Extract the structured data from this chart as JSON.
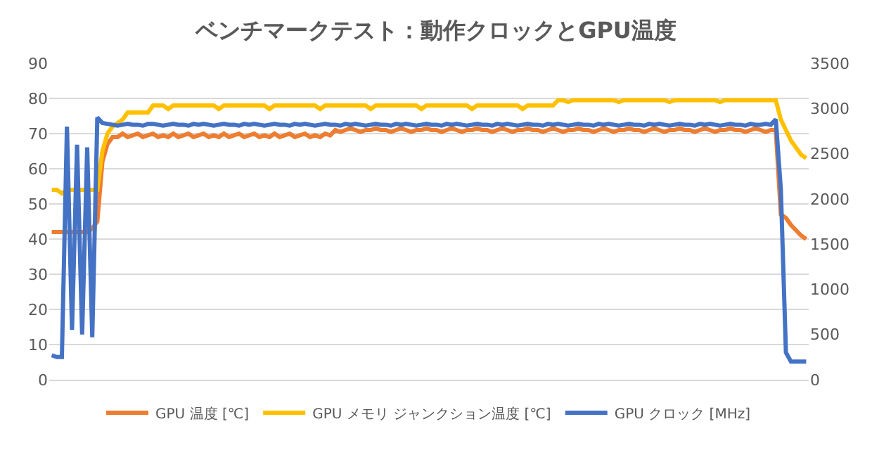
{
  "chart_data": {
    "type": "line",
    "title": "ベンチマークテスト：動作クロックとGPU温度",
    "categories": [
      null,
      null,
      null,
      null,
      null,
      null,
      null,
      null,
      null,
      null,
      null,
      null,
      null,
      null,
      null,
      null,
      null,
      null,
      null,
      null,
      null,
      null,
      null,
      null,
      null,
      null,
      null,
      null,
      null,
      null,
      null,
      null,
      null,
      null,
      null,
      null,
      null,
      null,
      null,
      null,
      null,
      null,
      null,
      null,
      null,
      null,
      null,
      null,
      null,
      null,
      null,
      null,
      null,
      null,
      null,
      null,
      null,
      null,
      null,
      null,
      null,
      null,
      null,
      null,
      null,
      null,
      null,
      null,
      null,
      null,
      null,
      null,
      null,
      null,
      null,
      null,
      null,
      null,
      null,
      null,
      null,
      null,
      null,
      null,
      null,
      null,
      null,
      null,
      null,
      null,
      null,
      null,
      null,
      null,
      null,
      null,
      null,
      null,
      null,
      null,
      null,
      null,
      null,
      null,
      null,
      null,
      null,
      null,
      null,
      null,
      null,
      null,
      null,
      null,
      null,
      null,
      null,
      null,
      null,
      null,
      null,
      null,
      null,
      null,
      null,
      null,
      null,
      null,
      null,
      null,
      null,
      null,
      null,
      null,
      null,
      null,
      null,
      null,
      null,
      null,
      null,
      null,
      null,
      null,
      null,
      null,
      null,
      null,
      null,
      null
    ],
    "series": [
      {
        "name": "GPU 温度 [℃]",
        "color": "#ed7d31",
        "values": [
          42,
          42,
          42,
          42,
          42,
          42,
          42,
          42,
          43,
          45,
          62,
          67,
          69,
          69,
          70,
          69,
          69.5,
          70,
          69,
          69.5,
          70,
          69,
          69.5,
          69,
          70,
          69,
          69.5,
          70,
          69,
          69.5,
          70,
          69,
          69.5,
          69,
          70,
          69,
          69.5,
          70,
          69,
          69.5,
          70,
          69,
          69.5,
          69,
          70,
          69,
          69.5,
          70,
          69,
          69.5,
          70,
          69,
          69.5,
          69,
          70,
          69.5,
          71,
          70.5,
          71,
          71.5,
          71,
          70.5,
          71,
          71,
          71.5,
          71,
          71,
          70.5,
          71,
          71.5,
          71,
          70.5,
          71,
          71,
          71.5,
          71,
          71,
          70.5,
          71,
          71.5,
          71,
          70.5,
          71,
          71,
          71.5,
          71,
          71,
          70.5,
          71,
          71.5,
          71,
          70.5,
          71,
          71,
          71.5,
          71,
          71,
          70.5,
          71,
          71.5,
          71,
          70.5,
          71,
          71,
          71.5,
          71,
          71,
          70.5,
          71,
          71.5,
          71,
          70.5,
          71,
          71,
          71.5,
          71,
          71,
          70.5,
          71,
          71.5,
          71,
          70.5,
          71,
          71,
          71.5,
          71,
          71,
          70.5,
          71,
          71.5,
          71,
          70.5,
          71,
          71,
          71.5,
          71,
          71,
          70.5,
          71,
          71.5,
          71,
          70.5,
          71,
          71,
          47,
          46,
          44,
          42.5,
          41,
          40
        ]
      },
      {
        "name": "GPU メモリ ジャンクション温度 [℃]",
        "color": "#ffc000",
        "values": [
          54,
          54,
          53,
          54,
          54,
          54,
          54,
          54,
          54,
          54,
          65,
          70,
          72,
          73,
          74,
          76,
          76,
          76,
          76,
          76,
          78,
          78,
          78,
          77,
          78,
          78,
          78,
          78,
          78,
          78,
          78,
          78,
          78,
          77,
          78,
          78,
          78,
          78,
          78,
          78,
          78,
          78,
          78,
          77,
          78,
          78,
          78,
          78,
          78,
          78,
          78,
          78,
          78,
          77,
          78,
          78,
          78,
          78,
          78,
          78,
          78,
          78,
          78,
          77,
          78,
          78,
          78,
          78,
          78,
          78,
          78,
          78,
          78,
          77,
          78,
          78,
          78,
          78,
          78,
          78,
          78,
          78,
          78,
          77,
          78,
          78,
          78,
          78,
          78,
          78,
          78,
          78,
          78,
          77,
          78,
          78,
          78,
          78,
          78,
          78,
          79.5,
          79.5,
          79,
          79.5,
          79.5,
          79.5,
          79.5,
          79.5,
          79.5,
          79.5,
          79.5,
          79.5,
          79,
          79.5,
          79.5,
          79.5,
          79.5,
          79.5,
          79.5,
          79.5,
          79.5,
          79.5,
          79,
          79.5,
          79.5,
          79.5,
          79.5,
          79.5,
          79.5,
          79.5,
          79.5,
          79.5,
          79,
          79.5,
          79.5,
          79.5,
          79.5,
          79.5,
          79.5,
          79.5,
          79.5,
          79.5,
          79.5,
          79.5,
          74,
          71,
          68,
          66,
          64,
          63
        ]
      },
      {
        "name": "GPU クロック [MHz]",
        "color": "#4472c4",
        "axis": "y2",
        "values": [
          270,
          250,
          250,
          2800,
          550,
          2600,
          500,
          2570,
          470,
          2900,
          2840,
          2830,
          2820,
          2810,
          2820,
          2830,
          2820,
          2820,
          2810,
          2830,
          2830,
          2820,
          2810,
          2820,
          2830,
          2820,
          2820,
          2810,
          2830,
          2820,
          2830,
          2820,
          2810,
          2820,
          2830,
          2820,
          2820,
          2810,
          2830,
          2820,
          2830,
          2820,
          2810,
          2820,
          2830,
          2820,
          2820,
          2810,
          2830,
          2820,
          2830,
          2820,
          2810,
          2820,
          2830,
          2820,
          2820,
          2810,
          2830,
          2820,
          2830,
          2820,
          2810,
          2820,
          2830,
          2820,
          2820,
          2810,
          2830,
          2820,
          2830,
          2820,
          2810,
          2820,
          2830,
          2820,
          2820,
          2810,
          2830,
          2820,
          2830,
          2820,
          2810,
          2820,
          2830,
          2820,
          2820,
          2810,
          2830,
          2820,
          2830,
          2820,
          2810,
          2820,
          2830,
          2820,
          2820,
          2810,
          2830,
          2820,
          2830,
          2820,
          2810,
          2820,
          2830,
          2820,
          2820,
          2810,
          2830,
          2820,
          2830,
          2820,
          2810,
          2820,
          2830,
          2820,
          2820,
          2810,
          2830,
          2820,
          2830,
          2820,
          2810,
          2820,
          2830,
          2820,
          2820,
          2810,
          2830,
          2820,
          2830,
          2820,
          2810,
          2820,
          2830,
          2820,
          2820,
          2810,
          2830,
          2820,
          2820,
          2830,
          2820,
          2880,
          2100,
          300,
          200,
          200,
          200,
          200
        ]
      }
    ],
    "ylim": [
      0,
      90
    ],
    "yticks": [
      0,
      10,
      20,
      30,
      40,
      50,
      60,
      70,
      80,
      90
    ],
    "y2lim": [
      0,
      3500
    ],
    "y2ticks": [
      0,
      500,
      1000,
      1500,
      2000,
      2500,
      3000,
      3500
    ],
    "grid": "y",
    "legend": "bottom",
    "marker": "none",
    "line_style": "solid"
  }
}
